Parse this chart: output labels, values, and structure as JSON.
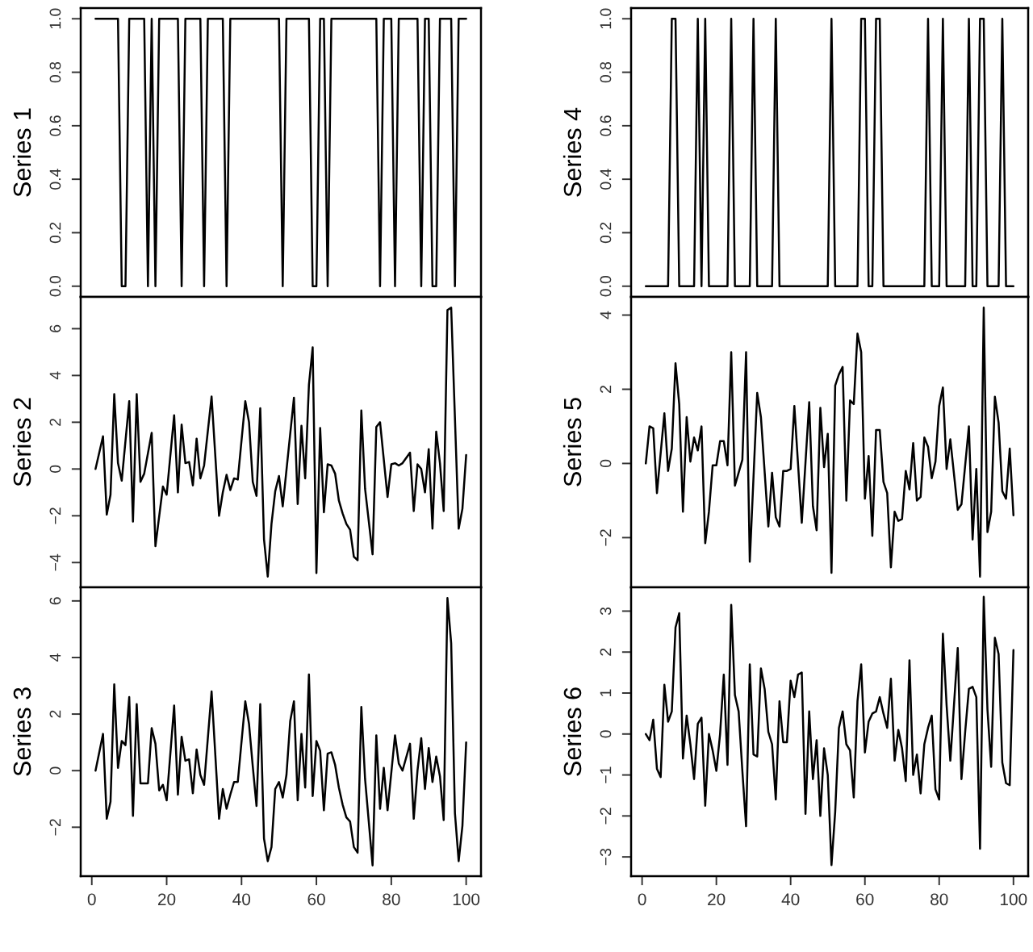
{
  "chart_data": [
    {
      "type": "line",
      "ylabel": "Series 1",
      "tick_labels": "y",
      "xlim": [
        -2.96,
        103.96
      ],
      "ylim": [
        -0.04,
        1.04
      ],
      "yticks": [
        {
          "value": 0,
          "label": "0.0"
        },
        {
          "value": 0.2,
          "label": "0.2"
        },
        {
          "value": 0.4,
          "label": "0.4"
        },
        {
          "value": 0.6,
          "label": "0.6"
        },
        {
          "value": 0.8,
          "label": "0.8"
        },
        {
          "value": 1,
          "label": "1.0"
        }
      ],
      "series": [
        {
          "color": "#000000",
          "x": [
            1,
            2,
            3,
            4,
            5,
            6,
            7,
            8,
            9,
            10,
            11,
            12,
            13,
            14,
            15,
            16,
            17,
            18,
            19,
            20,
            21,
            22,
            23,
            24,
            25,
            26,
            27,
            28,
            29,
            30,
            31,
            32,
            33,
            34,
            35,
            36,
            37,
            38,
            39,
            40,
            41,
            42,
            43,
            44,
            45,
            46,
            47,
            48,
            49,
            50,
            51,
            52,
            53,
            54,
            55,
            56,
            57,
            58,
            59,
            60,
            61,
            62,
            63,
            64,
            65,
            66,
            67,
            68,
            69,
            70,
            71,
            72,
            73,
            74,
            75,
            76,
            77,
            78,
            79,
            80,
            81,
            82,
            83,
            84,
            85,
            86,
            87,
            88,
            89,
            90,
            91,
            92,
            93,
            94,
            95,
            96,
            97,
            98,
            99,
            100
          ],
          "values": [
            1,
            1,
            1,
            1,
            1,
            1,
            1,
            0,
            0,
            1,
            1,
            1,
            1,
            1,
            0,
            1,
            0,
            1,
            1,
            1,
            1,
            1,
            1,
            0,
            1,
            1,
            1,
            1,
            1,
            0,
            1,
            1,
            1,
            1,
            1,
            0,
            1,
            1,
            1,
            1,
            1,
            1,
            1,
            1,
            1,
            1,
            1,
            1,
            1,
            1,
            0,
            1,
            1,
            1,
            1,
            1,
            1,
            1,
            0,
            0,
            1,
            1,
            0,
            1,
            1,
            1,
            1,
            1,
            1,
            1,
            1,
            1,
            1,
            1,
            1,
            1,
            0,
            1,
            1,
            1,
            0,
            1,
            1,
            1,
            1,
            1,
            1,
            0,
            1,
            1,
            0,
            0,
            1,
            1,
            1,
            1,
            0,
            1,
            1,
            1
          ]
        }
      ]
    },
    {
      "type": "line",
      "ylabel": "Series 2",
      "tick_labels": "y",
      "xlim": [
        -2.96,
        103.96
      ],
      "ylim": [
        -5.06,
        7.36
      ],
      "yticks": [
        {
          "value": -4,
          "label": "−4"
        },
        {
          "value": -2,
          "label": "−2"
        },
        0,
        2,
        4,
        6
      ],
      "series": [
        {
          "color": "#000000",
          "x": [
            1,
            3,
            4,
            5,
            6,
            7,
            8,
            10,
            11,
            12,
            13,
            14,
            16,
            17,
            19,
            20,
            22,
            23,
            24,
            25,
            26,
            27,
            28,
            29,
            30,
            32,
            34,
            35,
            36,
            37,
            38,
            39,
            41,
            42,
            43,
            44,
            45,
            46,
            47,
            48,
            49,
            50,
            51,
            54,
            55,
            56,
            57,
            58,
            59,
            60,
            61,
            62,
            63,
            64,
            65,
            66,
            67,
            68,
            69,
            70,
            71,
            72,
            73,
            75,
            76,
            77,
            79,
            80,
            81,
            82,
            83,
            85,
            86,
            87,
            88,
            89,
            90,
            91,
            92,
            93,
            94,
            95,
            96,
            98,
            99,
            100
          ],
          "values": [
            0,
            1.4,
            -1.95,
            -1.1,
            3.2,
            0.25,
            -0.5,
            2.9,
            -2.25,
            3.2,
            -0.55,
            -0.2,
            1.55,
            -3.3,
            -0.75,
            -1.1,
            2.3,
            -1.0,
            1.9,
            0.25,
            0.3,
            -0.7,
            1.3,
            -0.4,
            0.15,
            3.1,
            -2.0,
            -1.0,
            -0.25,
            -0.9,
            -0.4,
            -0.45,
            2.9,
            2.0,
            -0.55,
            -1.15,
            2.6,
            -3.0,
            -4.6,
            -2.35,
            -0.95,
            -0.3,
            -1.6,
            3.05,
            -1.5,
            1.85,
            -0.4,
            3.6,
            5.2,
            -4.45,
            1.75,
            -1.85,
            0.2,
            0.15,
            -0.2,
            -1.35,
            -1.9,
            -2.35,
            -2.6,
            -3.75,
            -3.9,
            2.5,
            -0.85,
            -3.65,
            1.8,
            2.0,
            -1.2,
            0.2,
            0.25,
            0.15,
            0.25,
            0.7,
            -1.8,
            0.2,
            0.0,
            -1.0,
            0.85,
            -2.55,
            1.6,
            0.25,
            -1.8,
            6.8,
            6.9,
            -2.55,
            -1.7,
            0.6
          ]
        }
      ]
    },
    {
      "type": "line",
      "ylabel": "Series 3",
      "xlim": [
        -2.96,
        103.96
      ],
      "ylim": [
        -3.73,
        6.48
      ],
      "yticks": [
        {
          "value": -2,
          "label": "−2"
        },
        0,
        2,
        4,
        6
      ],
      "xticks": [
        0,
        20,
        40,
        60,
        80,
        100
      ],
      "series": [
        {
          "color": "#000000",
          "x": [
            1,
            3,
            4,
            5,
            6,
            7,
            8,
            9,
            10,
            11,
            12,
            13,
            15,
            16,
            17,
            18,
            19,
            20,
            22,
            23,
            24,
            25,
            26,
            27,
            28,
            29,
            30,
            32,
            34,
            35,
            36,
            37,
            38,
            39,
            41,
            42,
            43,
            44,
            45,
            46,
            47,
            48,
            49,
            50,
            51,
            52,
            53,
            54,
            55,
            56,
            57,
            58,
            59,
            60,
            61,
            62,
            63,
            64,
            65,
            66,
            67,
            68,
            69,
            70,
            71,
            72,
            73,
            75,
            76,
            77,
            78,
            79,
            81,
            82,
            83,
            85,
            86,
            87,
            88,
            89,
            90,
            91,
            92,
            93,
            94,
            95,
            96,
            97,
            98,
            99,
            100
          ],
          "values": [
            0,
            1.3,
            -1.7,
            -1.1,
            3.05,
            0.1,
            1.05,
            0.9,
            2.6,
            -1.6,
            2.35,
            -0.45,
            -0.45,
            1.5,
            0.95,
            -0.7,
            -0.5,
            -1.05,
            2.3,
            -0.85,
            1.2,
            0.35,
            0.4,
            -0.8,
            0.75,
            -0.15,
            -0.5,
            2.8,
            -1.7,
            -0.65,
            -1.35,
            -0.85,
            -0.4,
            -0.4,
            2.45,
            1.65,
            0.15,
            -1.25,
            2.35,
            -2.4,
            -3.2,
            -2.7,
            -0.65,
            -0.4,
            -0.95,
            -0.15,
            1.75,
            2.45,
            -1.05,
            1.3,
            -0.6,
            3.4,
            -0.9,
            1.05,
            0.7,
            -1.4,
            0.6,
            0.65,
            0.2,
            -0.6,
            -1.2,
            -1.65,
            -1.8,
            -2.7,
            -2.9,
            2.25,
            -0.3,
            -3.35,
            1.25,
            -1.35,
            0.1,
            -1.4,
            1.25,
            0.25,
            0.0,
            0.95,
            -1.7,
            0.0,
            1.15,
            -0.65,
            0.8,
            -0.4,
            0.5,
            -0.2,
            -1.75,
            6.1,
            4.5,
            -1.5,
            -3.2,
            -1.95,
            1.0
          ]
        }
      ]
    },
    {
      "type": "line",
      "ylabel": "Series 4",
      "tick_labels": "y",
      "xlim": [
        -2.96,
        103.96
      ],
      "ylim": [
        -0.04,
        1.04
      ],
      "yticks": [
        {
          "value": 0,
          "label": "0.0"
        },
        {
          "value": 0.2,
          "label": "0.2"
        },
        {
          "value": 0.4,
          "label": "0.4"
        },
        {
          "value": 0.6,
          "label": "0.6"
        },
        {
          "value": 0.8,
          "label": "0.8"
        },
        {
          "value": 1,
          "label": "1.0"
        }
      ],
      "series": [
        {
          "color": "#000000",
          "x": [
            1,
            2,
            3,
            4,
            5,
            6,
            7,
            8,
            9,
            10,
            11,
            12,
            13,
            14,
            15,
            16,
            17,
            18,
            19,
            20,
            21,
            22,
            23,
            24,
            25,
            26,
            27,
            28,
            29,
            30,
            31,
            32,
            33,
            34,
            35,
            36,
            37,
            38,
            39,
            40,
            41,
            42,
            43,
            44,
            45,
            46,
            47,
            48,
            49,
            50,
            51,
            52,
            53,
            54,
            55,
            56,
            57,
            58,
            59,
            60,
            61,
            62,
            63,
            64,
            65,
            66,
            67,
            68,
            69,
            70,
            71,
            72,
            73,
            74,
            75,
            76,
            77,
            78,
            79,
            80,
            81,
            82,
            83,
            84,
            85,
            86,
            87,
            88,
            89,
            90,
            91,
            92,
            93,
            94,
            95,
            96,
            97,
            98,
            99,
            100
          ],
          "values": [
            0,
            0,
            0,
            0,
            0,
            0,
            0,
            1,
            1,
            0,
            0,
            0,
            0,
            0,
            1,
            0,
            1,
            0,
            0,
            0,
            0,
            0,
            0,
            1,
            0,
            0,
            0,
            0,
            0,
            1,
            0,
            0,
            0,
            0,
            0,
            1,
            0,
            0,
            0,
            0,
            0,
            0,
            0,
            0,
            0,
            0,
            0,
            0,
            0,
            0,
            1,
            0,
            0,
            0,
            0,
            0,
            0,
            0,
            1,
            1,
            0,
            0,
            1,
            1,
            0,
            0,
            0,
            0,
            0,
            0,
            0,
            0,
            0,
            0,
            0,
            0,
            1,
            0,
            0,
            0,
            1,
            0,
            0,
            0,
            0,
            0,
            0,
            1,
            0,
            0,
            1,
            1,
            0,
            0,
            0,
            0,
            1,
            0,
            0,
            0
          ]
        }
      ]
    },
    {
      "type": "line",
      "ylabel": "Series 5",
      "tick_labels": "y",
      "xlim": [
        -2.96,
        103.96
      ],
      "ylim": [
        -3.34,
        4.49
      ],
      "yticks": [
        {
          "value": -2,
          "label": "−2"
        },
        0,
        2,
        4
      ],
      "series": [
        {
          "color": "#000000",
          "x": [
            1,
            2,
            3,
            4,
            6,
            7,
            8,
            9,
            10,
            11,
            12,
            13,
            14,
            15,
            16,
            17,
            18,
            19,
            20,
            21,
            22,
            23,
            24,
            25,
            27,
            28,
            29,
            31,
            32,
            34,
            35,
            36,
            37,
            38,
            39,
            40,
            41,
            43,
            45,
            46,
            47,
            48,
            49,
            50,
            51,
            52,
            53,
            54,
            55,
            56,
            57,
            58,
            59,
            60,
            61,
            62,
            63,
            64,
            65,
            66,
            67,
            68,
            69,
            70,
            71,
            72,
            73,
            74,
            75,
            76,
            77,
            78,
            79,
            80,
            81,
            82,
            83,
            85,
            86,
            88,
            89,
            90,
            91,
            92,
            93,
            94,
            95,
            96,
            97,
            98,
            99,
            100
          ],
          "values": [
            0,
            1.0,
            0.95,
            -0.8,
            1.35,
            -0.2,
            0.4,
            2.7,
            1.6,
            -1.3,
            1.25,
            0.05,
            0.7,
            0.35,
            1.0,
            -2.15,
            -1.3,
            -0.05,
            -0.05,
            0.6,
            0.6,
            -0.05,
            3.0,
            -0.6,
            0.1,
            3.0,
            -2.65,
            1.9,
            1.25,
            -1.7,
            -0.25,
            -1.45,
            -1.7,
            -0.2,
            -0.2,
            -0.15,
            1.55,
            -1.6,
            1.65,
            -1.15,
            -1.8,
            1.5,
            -0.1,
            0.8,
            -2.95,
            2.1,
            2.4,
            2.6,
            -1.0,
            1.7,
            1.6,
            3.5,
            3.0,
            -0.95,
            0.2,
            -1.95,
            0.9,
            0.9,
            -0.5,
            -0.8,
            -2.8,
            -1.3,
            -1.55,
            -1.5,
            -0.2,
            -0.7,
            0.55,
            -1.0,
            -0.9,
            0.7,
            0.45,
            -0.4,
            0.05,
            1.55,
            2.05,
            -0.15,
            0.65,
            -1.25,
            -1.1,
            1.0,
            -2.05,
            -0.15,
            -3.05,
            4.2,
            -1.85,
            -1.3,
            1.8,
            1.1,
            -0.75,
            -0.95,
            0.4,
            -1.4
          ]
        }
      ]
    },
    {
      "type": "line",
      "ylabel": "Series 6",
      "xlim": [
        -2.96,
        103.96
      ],
      "ylim": [
        -3.47,
        3.58
      ],
      "yticks": [
        {
          "value": -3,
          "label": "−3"
        },
        {
          "value": -2,
          "label": "−2"
        },
        {
          "value": -1,
          "label": "−1"
        },
        0,
        1,
        2,
        3
      ],
      "xticks": [
        0,
        20,
        40,
        60,
        80,
        100
      ],
      "series": [
        {
          "color": "#000000",
          "x": [
            1,
            2,
            3,
            4,
            5,
            6,
            7,
            8,
            9,
            10,
            11,
            12,
            13,
            14,
            15,
            16,
            17,
            18,
            19,
            20,
            21,
            22,
            23,
            24,
            25,
            26,
            27,
            28,
            29,
            30,
            31,
            32,
            33,
            34,
            35,
            36,
            37,
            38,
            39,
            40,
            41,
            42,
            43,
            44,
            45,
            46,
            47,
            48,
            49,
            50,
            51,
            52,
            53,
            54,
            55,
            56,
            57,
            58,
            59,
            60,
            61,
            62,
            63,
            64,
            65,
            66,
            67,
            68,
            69,
            70,
            71,
            72,
            73,
            74,
            75,
            76,
            77,
            78,
            79,
            80,
            81,
            82,
            83,
            85,
            86,
            87,
            88,
            89,
            90,
            91,
            92,
            93,
            94,
            95,
            96,
            97,
            98,
            99,
            100
          ],
          "values": [
            0.0,
            -0.15,
            0.35,
            -0.85,
            -1.05,
            1.2,
            0.3,
            0.55,
            2.6,
            2.95,
            -0.6,
            0.45,
            -0.25,
            -1.1,
            0.25,
            0.4,
            -1.75,
            0.0,
            -0.4,
            -0.9,
            0.0,
            1.45,
            -0.75,
            3.15,
            0.95,
            0.55,
            -0.9,
            -2.25,
            1.7,
            -0.5,
            -0.55,
            1.6,
            1.1,
            0.05,
            -0.25,
            -1.6,
            0.8,
            -0.2,
            -0.2,
            1.3,
            0.9,
            1.45,
            1.5,
            -1.95,
            0.55,
            -1.1,
            -0.15,
            -2.0,
            -0.35,
            -1.0,
            -3.2,
            -1.9,
            0.15,
            0.55,
            -0.25,
            -0.4,
            -1.55,
            0.8,
            1.7,
            -0.45,
            0.3,
            0.5,
            0.55,
            0.9,
            0.5,
            0.15,
            1.35,
            -0.65,
            0.1,
            -0.35,
            -1.15,
            1.8,
            -1.0,
            -0.5,
            -1.45,
            -0.25,
            0.15,
            0.45,
            -1.35,
            -1.6,
            2.45,
            0.7,
            -0.65,
            2.1,
            -1.1,
            0.05,
            1.1,
            1.15,
            0.9,
            -2.8,
            3.35,
            0.6,
            -0.8,
            2.35,
            1.95,
            -0.7,
            -1.2,
            -1.25,
            2.05
          ]
        }
      ]
    }
  ]
}
